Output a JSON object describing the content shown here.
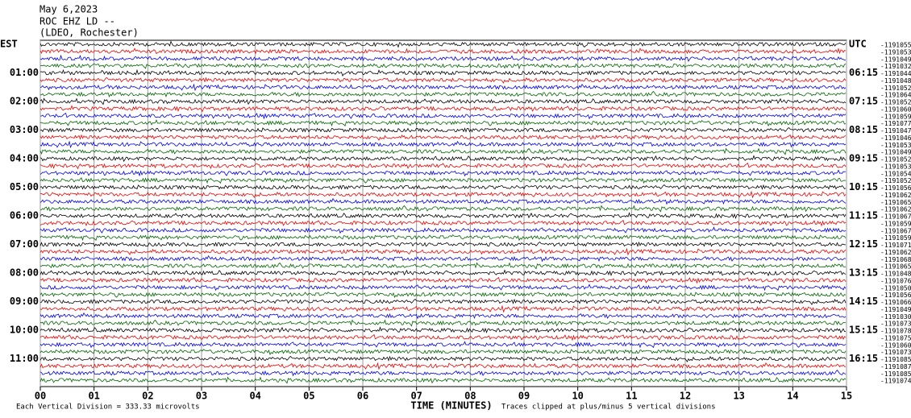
{
  "header": {
    "date": "May 6,2023",
    "station": "ROC EHZ LD --",
    "location": "(LDEO, Rochester)"
  },
  "est_labels": [
    "EST",
    "01:00",
    "02:00",
    "03:00",
    "04:00",
    "05:00",
    "06:00",
    "07:00",
    "08:00",
    "09:00",
    "10:00",
    "11:00"
  ],
  "utc_labels": [
    "UTC",
    "06:15",
    "07:15",
    "08:15",
    "09:15",
    "10:15",
    "11:15",
    "12:15",
    "13:15",
    "14:15",
    "15:15",
    "16:15"
  ],
  "trace_labels": [
    "-1191055",
    "-1191053",
    "-1191049",
    "-1191032",
    "-1191044",
    "-1191048",
    "-1191052",
    "-1191064",
    "-1191052",
    "-1191060",
    "-1191059",
    "-1191077",
    "-1191047",
    "-1191046",
    "-1191053",
    "-1191049",
    "-1191052",
    "-1191053",
    "-1191054",
    "-1191052",
    "-1191056",
    "-1191062",
    "-1191065",
    "-1191062",
    "-1191067",
    "-1191059",
    "-1191067",
    "-1191059",
    "-1191071",
    "-1191062",
    "-1191068",
    "-1191065",
    "-1191048",
    "-1191076",
    "-1191050",
    "-1191056",
    "-1191066",
    "-1191049",
    "-1191030",
    "-1191073",
    "-1191078",
    "-1191075",
    "-1191060",
    "-1191073",
    "-1191085",
    "-1191087",
    "-1191085",
    "-1191074"
  ],
  "x_ticks": [
    "00",
    "01",
    "02",
    "03",
    "04",
    "05",
    "06",
    "07",
    "08",
    "09",
    "10",
    "11",
    "12",
    "13",
    "14",
    "15"
  ],
  "x_label": "TIME (MINUTES)",
  "footer_left": "Each Vertical Division =  333.33 microvolts",
  "footer_right": "Traces clipped at plus/minus 5 vertical divisions"
}
